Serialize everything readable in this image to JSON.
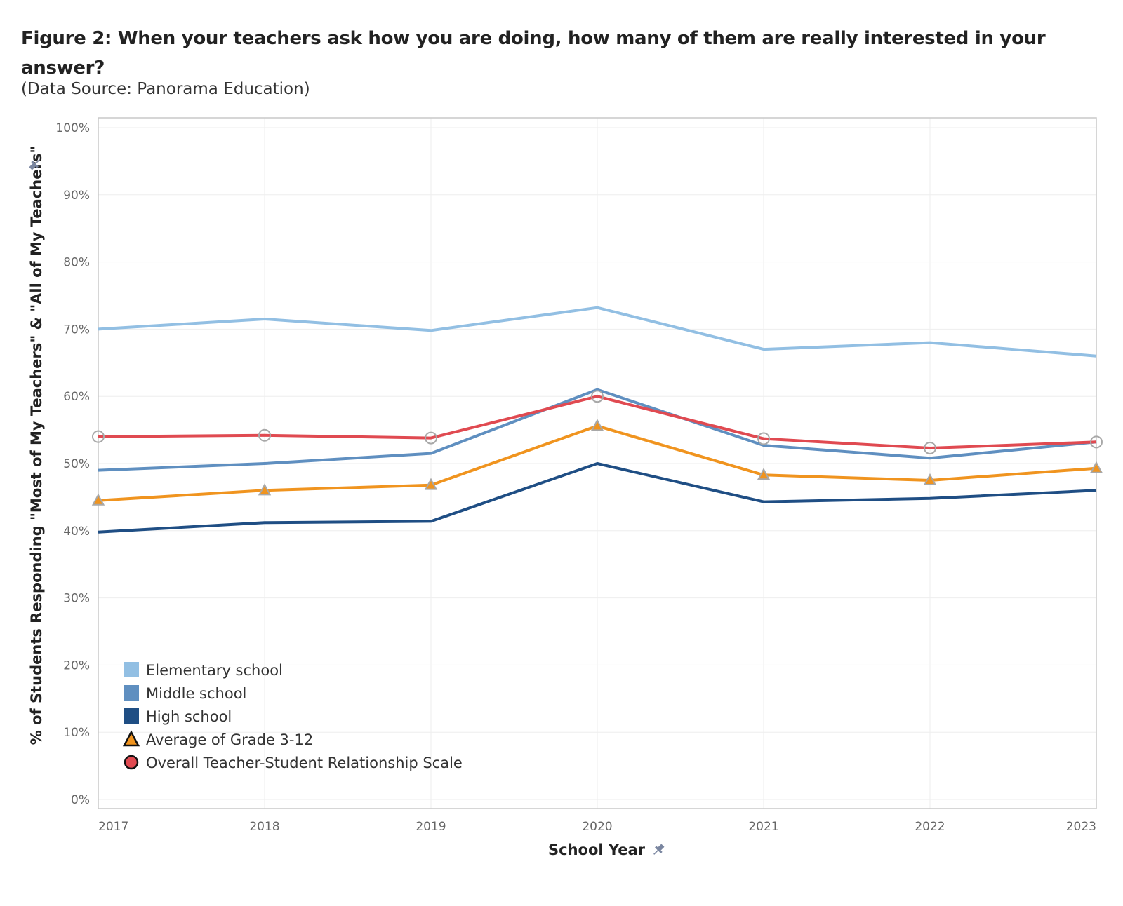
{
  "title": "Figure 2: When your teachers ask how you are doing, how many of them are really interested in your answer?",
  "subtitle": "(Data Source: Panorama Education)",
  "chart_data": {
    "type": "line",
    "xlabel": "School Year",
    "ylabel": "% of Students Responding \"Most of My Teachers\" & \"All of My Teachers\"",
    "x": [
      "2017",
      "2018",
      "2019",
      "2020",
      "2021",
      "2022",
      "2023"
    ],
    "ylim": [
      0,
      100
    ],
    "yticks": [
      "0%",
      "10%",
      "20%",
      "30%",
      "40%",
      "50%",
      "60%",
      "70%",
      "80%",
      "90%",
      "100%"
    ],
    "grid": true,
    "legend_position": "bottom-left",
    "series": [
      {
        "name": "Elementary school",
        "color": "#92bfe3",
        "marker": "none",
        "values": [
          70,
          71.5,
          69.8,
          73.2,
          67,
          68,
          66
        ]
      },
      {
        "name": "Middle school",
        "color": "#5f8fc0",
        "marker": "none",
        "values": [
          49,
          50,
          51.5,
          61,
          52.7,
          50.8,
          53.2
        ]
      },
      {
        "name": "High school",
        "color": "#1f4e84",
        "marker": "none",
        "values": [
          39.8,
          41.2,
          41.4,
          50,
          44.3,
          44.8,
          46
        ]
      },
      {
        "name": "Average of Grade 3-12",
        "color": "#f0941f",
        "marker": "triangle",
        "values": [
          44.5,
          46,
          46.8,
          55.6,
          48.3,
          47.5,
          49.3
        ]
      },
      {
        "name": "Overall Teacher-Student Relationship Scale",
        "color": "#e04a51",
        "marker": "circle",
        "values": [
          54,
          54.2,
          53.8,
          60,
          53.7,
          52.3,
          53.2
        ]
      }
    ]
  }
}
